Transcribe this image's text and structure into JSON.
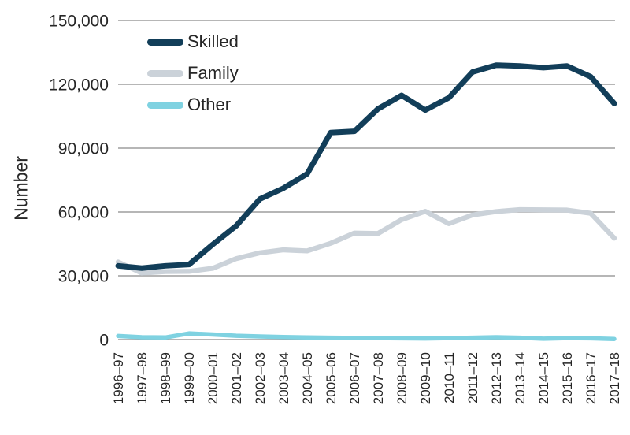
{
  "chart_data": {
    "type": "line",
    "title": "",
    "xlabel": "",
    "ylabel": "Number",
    "ylim": [
      0,
      150000
    ],
    "ytick_step": 30000,
    "ytick_labels": [
      "0",
      "30,000",
      "60,000",
      "90,000",
      "120,000",
      "150,000"
    ],
    "grid": "horizontal",
    "legend_position": "upper-left-inside",
    "categories": [
      "1996–97",
      "1997–98",
      "1998–99",
      "1999–00",
      "2000–01",
      "2001–02",
      "2002–03",
      "2003–04",
      "2004–05",
      "2005–06",
      "2006–07",
      "2007–08",
      "2008–09",
      "2009–10",
      "2010–11",
      "2011–12",
      "2012–13",
      "2013–14",
      "2014–15",
      "2015–16",
      "2016–17",
      "2017–18"
    ],
    "series": [
      {
        "name": "Skilled",
        "color": "#123e59",
        "values": [
          34700,
          33600,
          34700,
          35300,
          44700,
          53500,
          66100,
          71200,
          77900,
          97300,
          97900,
          108500,
          114800,
          107900,
          113700,
          125800,
          129000,
          128600,
          127800,
          128600,
          123600,
          111000
        ]
      },
      {
        "name": "Family",
        "color": "#cbd2d9",
        "values": [
          36500,
          31300,
          32000,
          32100,
          33500,
          38100,
          40800,
          42200,
          41700,
          45300,
          50100,
          49900,
          56400,
          60300,
          54500,
          58600,
          60200,
          61100,
          61000,
          60900,
          59400,
          47700
        ]
      },
      {
        "name": "Other",
        "color": "#7fd2e1",
        "values": [
          1700,
          1100,
          1000,
          2900,
          2400,
          1800,
          1500,
          1200,
          1000,
          900,
          800,
          700,
          600,
          500,
          700,
          900,
          1100,
          900,
          400,
          700,
          600,
          300
        ]
      }
    ]
  },
  "colors": {
    "grid": "#9e9e9e",
    "text": "#262626",
    "background": "#ffffff"
  }
}
